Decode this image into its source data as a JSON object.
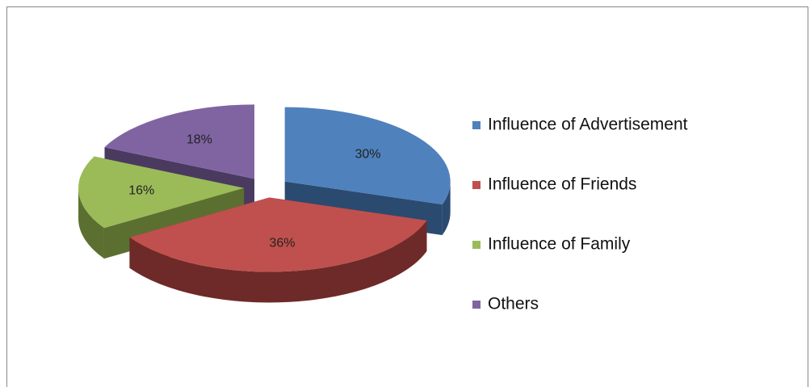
{
  "chart_data": {
    "type": "pie3d",
    "categories": [
      "Influence of Advertisement",
      "Influence of Friends",
      "Influence of Family",
      "Others"
    ],
    "values": [
      30,
      36,
      16,
      18
    ],
    "value_labels": [
      "30%",
      "36%",
      "16%",
      "18%"
    ],
    "colors": [
      "#4f81bd",
      "#c0504d",
      "#9bbb59",
      "#8064a2"
    ],
    "side_colors": [
      "#2b4a70",
      "#6e2a28",
      "#5b7030",
      "#4a3a60"
    ],
    "legend": "right"
  }
}
